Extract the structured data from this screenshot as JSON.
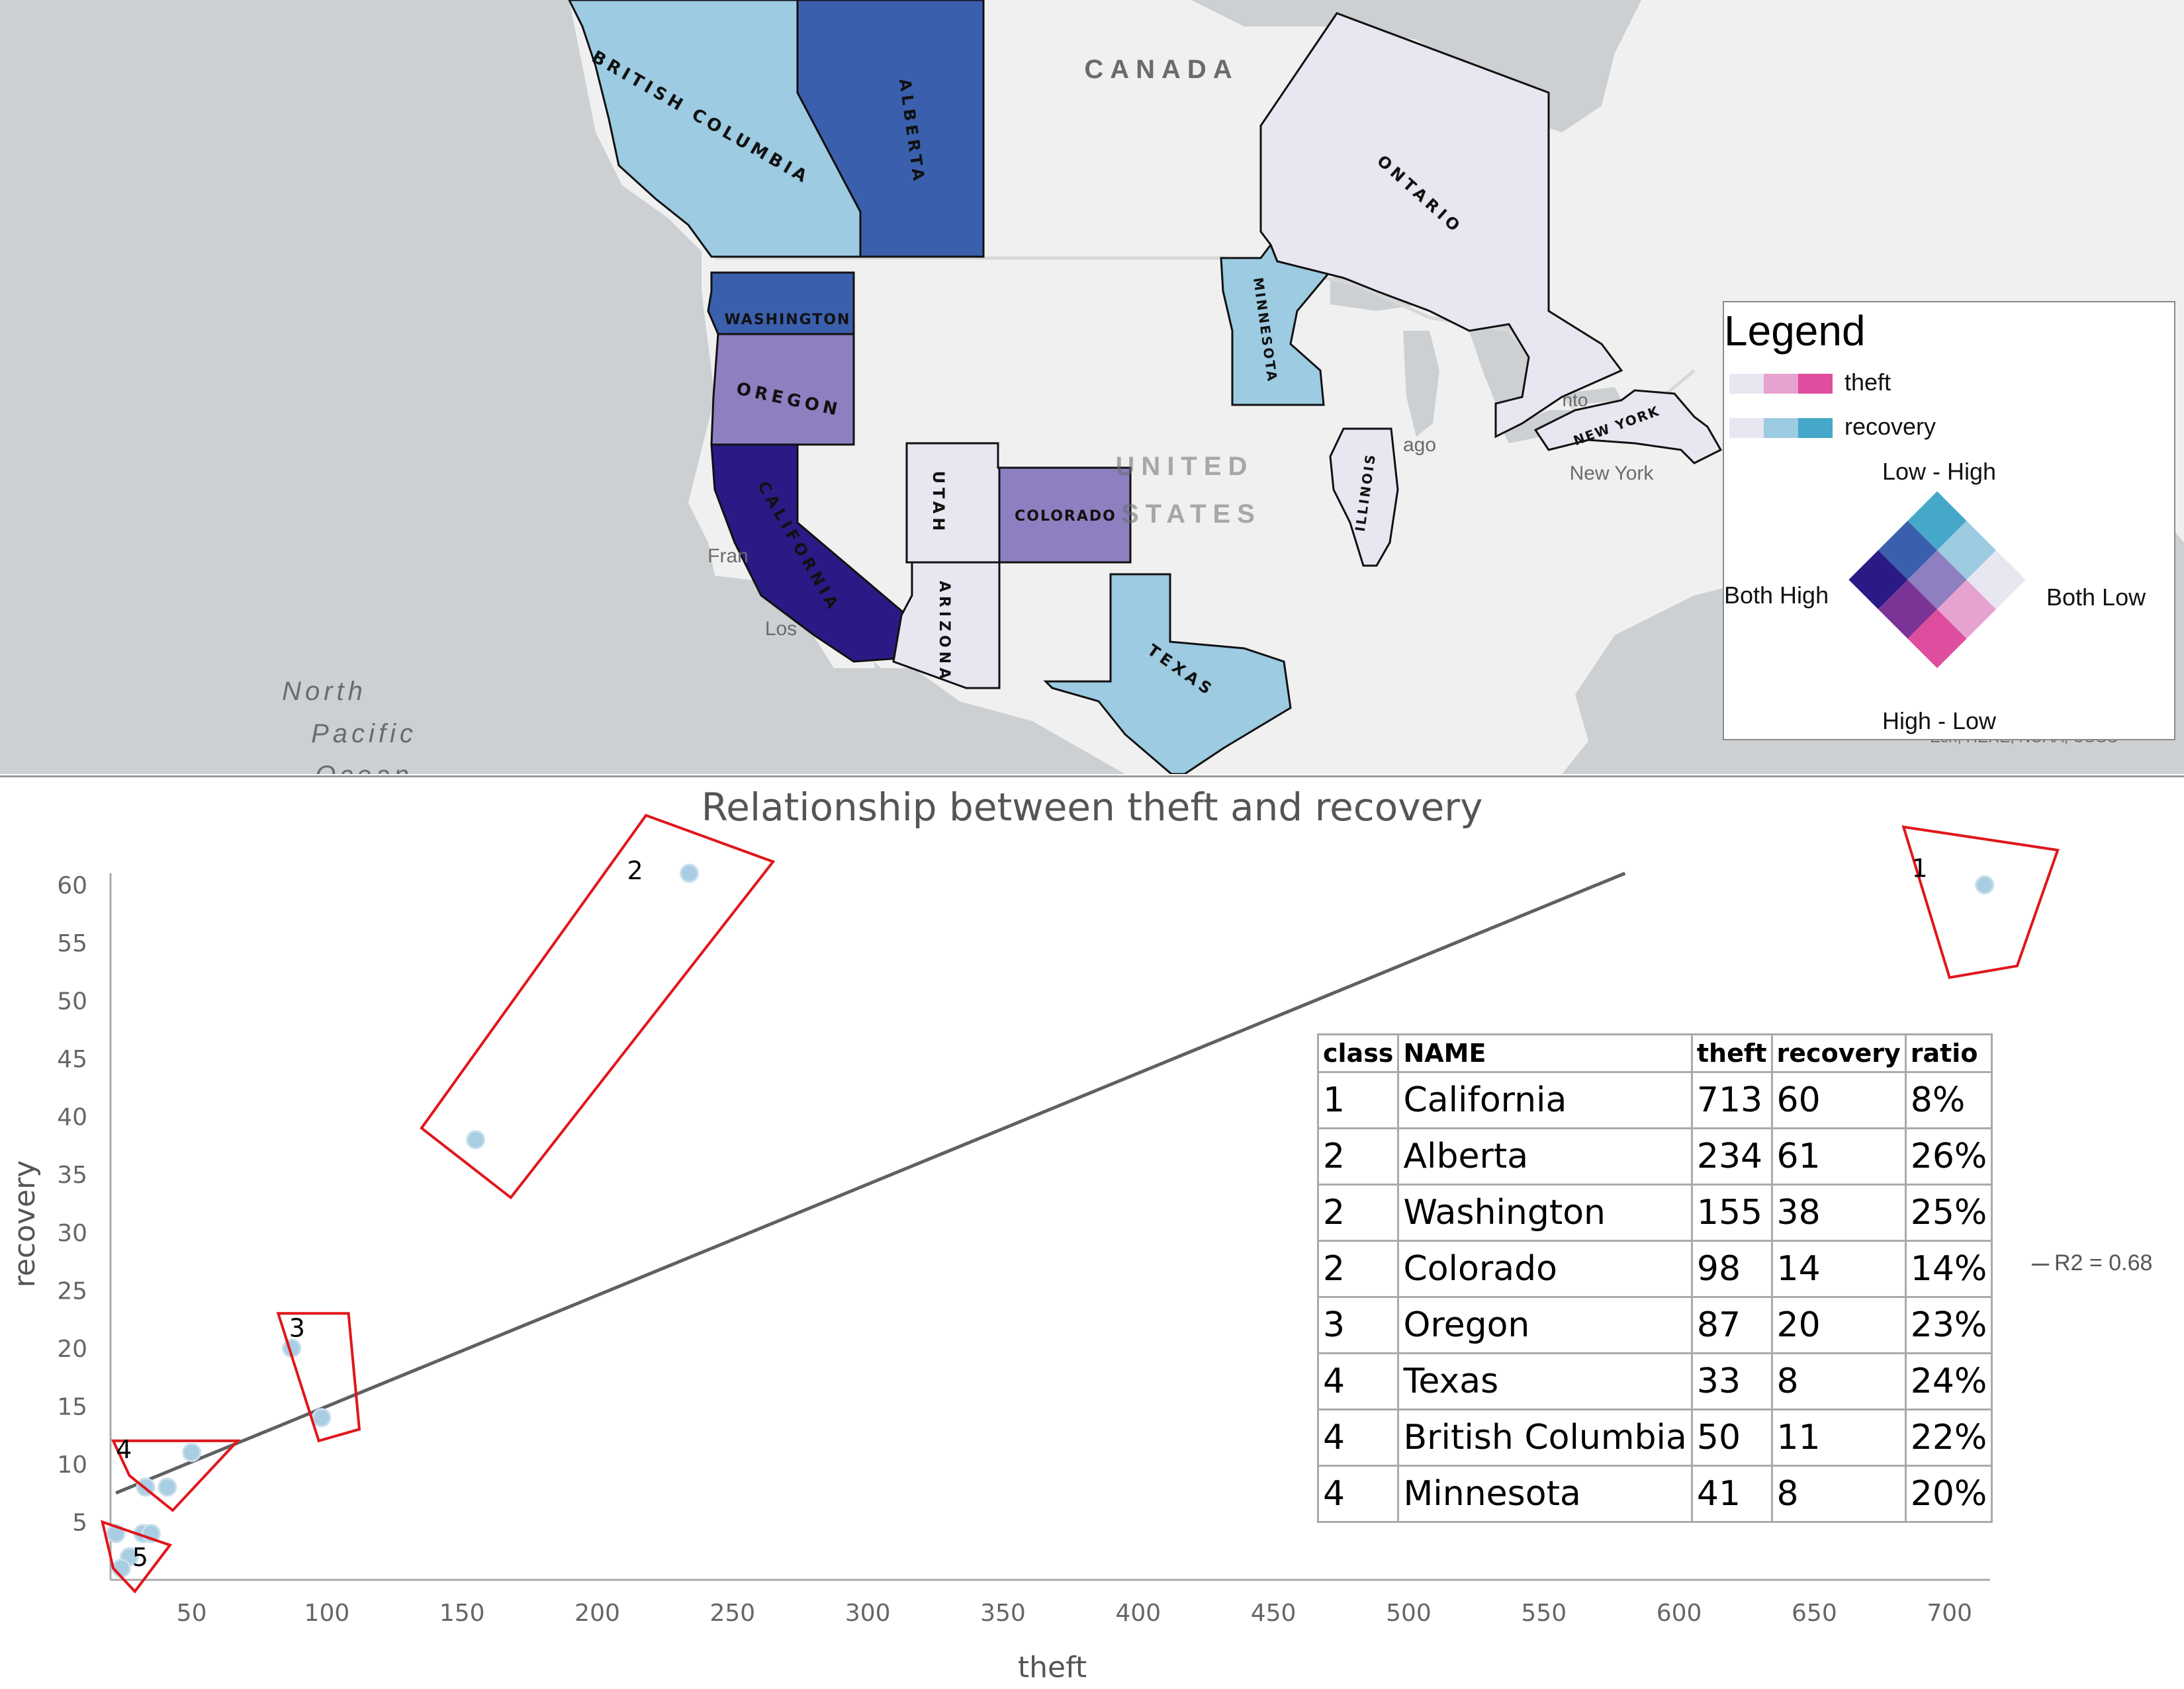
{
  "map": {
    "basemap_labels": {
      "canada": "CANADA",
      "united": "UNITED",
      "states": "STATES",
      "north": "North",
      "pacific": "Pacific",
      "ocean": "Ocean",
      "fran": "Fran",
      "los": "Los",
      "chicago": "ago",
      "toronto": "nto",
      "new_york_city": "New York",
      "attribution": "Esri, HERE, NOAA, USGS"
    },
    "regions": [
      {
        "id": "british-columbia",
        "label": "BRITISH COLUMBIA",
        "color": "#9ccbe2"
      },
      {
        "id": "alberta",
        "label": "ALBERTA",
        "color": "#3a5fad"
      },
      {
        "id": "washington",
        "label": "WASHINGTON",
        "color": "#3a5fad"
      },
      {
        "id": "oregon",
        "label": "OREGON",
        "color": "#8e7fc0"
      },
      {
        "id": "california",
        "label": "CALIFORNIA",
        "color": "#2a1a85"
      },
      {
        "id": "utah",
        "label": "UTAH",
        "color": "#e8e6f1"
      },
      {
        "id": "colorado",
        "label": "COLORADO",
        "color": "#8e7fc0"
      },
      {
        "id": "arizona",
        "label": "ARIZONA",
        "color": "#e8e6f1"
      },
      {
        "id": "texas",
        "label": "TEXAS",
        "color": "#9ccbe2"
      },
      {
        "id": "minnesota",
        "label": "MINNESOTA",
        "color": "#9ccbe2"
      },
      {
        "id": "illinois",
        "label": "ILLINOIS",
        "color": "#e8e6f1"
      },
      {
        "id": "ontario",
        "label": "ONTARIO",
        "color": "#e8e6f1"
      },
      {
        "id": "new-york",
        "label": "NEW YORK",
        "color": "#e8e6f1"
      }
    ]
  },
  "legend": {
    "title": "Legend",
    "theft_label": "theft",
    "recovery_label": "recovery",
    "theft_colors": [
      "#e8e6f1",
      "#e6a3cf",
      "#df4d9e"
    ],
    "recovery_colors": [
      "#e8e6f1",
      "#9ccbe2",
      "#46a8c8"
    ],
    "top_label": "Low - High",
    "bottom_label": "High - Low",
    "left_label": "Both High",
    "right_label": "Both Low",
    "matrix_colors": [
      [
        "#46a8c8",
        "#9ccbe2",
        "#e8e6f1"
      ],
      [
        "#3a5fad",
        "#8e7fc0",
        "#e6a3cf"
      ],
      [
        "#2a1a85",
        "#7b3495",
        "#df4d9e"
      ]
    ]
  },
  "chart_data": {
    "type": "scatter",
    "title": "Relationship between theft and recovery",
    "xlabel": "theft",
    "ylabel": "recovery",
    "xlim": [
      20,
      715
    ],
    "ylim": [
      0,
      61
    ],
    "x_ticks": [
      50,
      100,
      150,
      200,
      250,
      300,
      350,
      400,
      450,
      500,
      550,
      600,
      650,
      700
    ],
    "y_ticks": [
      5,
      10,
      15,
      20,
      25,
      30,
      35,
      40,
      45,
      50,
      55,
      60
    ],
    "points": [
      {
        "x": 713,
        "y": 60
      },
      {
        "x": 234,
        "y": 61
      },
      {
        "x": 155,
        "y": 38
      },
      {
        "x": 87,
        "y": 20
      },
      {
        "x": 98,
        "y": 14
      },
      {
        "x": 50,
        "y": 11
      },
      {
        "x": 33,
        "y": 8
      },
      {
        "x": 41,
        "y": 8
      },
      {
        "x": 22,
        "y": 4
      },
      {
        "x": 32,
        "y": 4
      },
      {
        "x": 35,
        "y": 4
      },
      {
        "x": 27,
        "y": 2
      },
      {
        "x": 24,
        "y": 1
      }
    ],
    "point_color": "#a9cde3",
    "trendline": {
      "x": [
        22,
        580
      ],
      "y": [
        7.5,
        61
      ],
      "label": "R2 = 0.68",
      "color": "#606060"
    },
    "cluster_labels": [
      "1",
      "2",
      "3",
      "4",
      "5"
    ],
    "cluster_color": "#e0161b"
  },
  "table": {
    "headers": [
      "class",
      "NAME",
      "theft",
      "recovery",
      "ratio"
    ],
    "rows": [
      [
        "1",
        "California",
        "713",
        "60",
        "8%"
      ],
      [
        "2",
        "Alberta",
        "234",
        "61",
        "26%"
      ],
      [
        "2",
        "Washington",
        "155",
        "38",
        "25%"
      ],
      [
        "2",
        "Colorado",
        "98",
        "14",
        "14%"
      ],
      [
        "3",
        "Oregon",
        "87",
        "20",
        "23%"
      ],
      [
        "4",
        "Texas",
        "33",
        "8",
        "24%"
      ],
      [
        "4",
        "British Columbia",
        "50",
        "11",
        "22%"
      ],
      [
        "4",
        "Minnesota",
        "41",
        "8",
        "20%"
      ]
    ]
  }
}
